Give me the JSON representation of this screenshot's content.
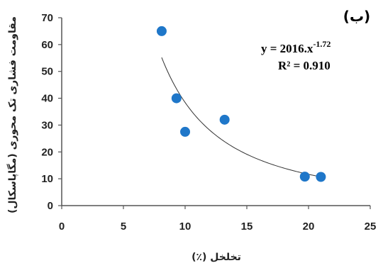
{
  "chart_data": {
    "type": "scatter",
    "panel_label": "(ب)",
    "xlabel": "تخلخل (٪)",
    "ylabel": "مقاومت فشاری تک محوری (مگاپاسکال)",
    "xlim": [
      0,
      25
    ],
    "ylim": [
      0,
      70
    ],
    "x_ticks": [
      "0",
      "5",
      "10",
      "15",
      "20",
      "25"
    ],
    "y_ticks": [
      "0",
      "10",
      "20",
      "30",
      "40",
      "50",
      "60",
      "70"
    ],
    "points": [
      {
        "x": 8.1,
        "y": 65
      },
      {
        "x": 9.3,
        "y": 40
      },
      {
        "x": 10.0,
        "y": 27.5
      },
      {
        "x": 13.2,
        "y": 32
      },
      {
        "x": 19.7,
        "y": 10.8
      },
      {
        "x": 21.0,
        "y": 10.7
      }
    ],
    "trendline": {
      "type": "power",
      "a": 2016,
      "b": -1.72,
      "x_range": [
        8.1,
        21.0
      ]
    },
    "equation": "y = 2016.x-1.72",
    "equation_main": "y = 2016.x",
    "equation_exp": "-1.72",
    "r2_label": "R² = 0.910",
    "point_color": "#1f77c9",
    "trend_color": "#333333",
    "grid": false
  }
}
